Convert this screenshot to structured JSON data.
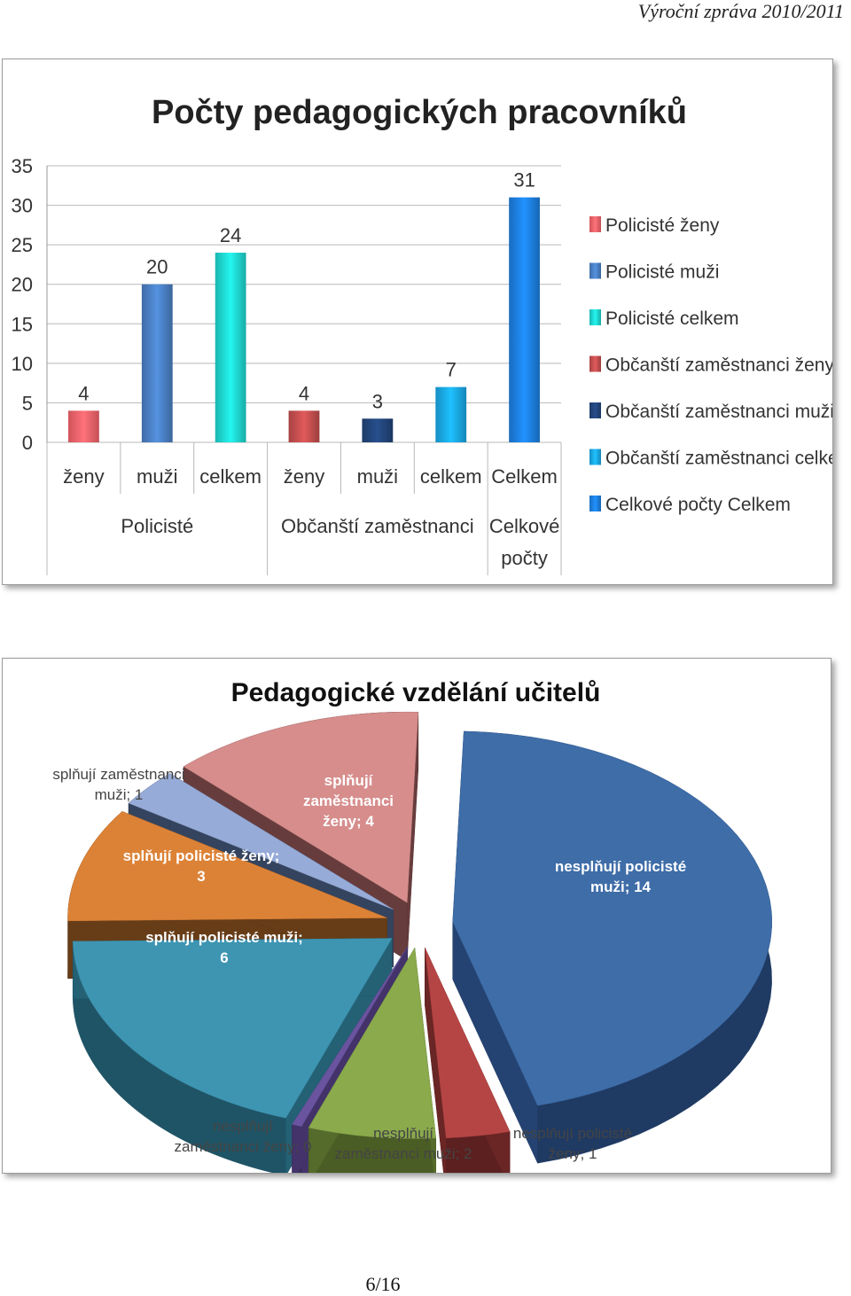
{
  "page": {
    "header": "Výroční zpráva 2010/2011",
    "footer": "6/16"
  },
  "chart_data": [
    {
      "type": "bar",
      "title": "Počty pedagogických pracovníků",
      "ylim": [
        0,
        35
      ],
      "yticks": [
        0,
        5,
        10,
        15,
        20,
        25,
        30,
        35
      ],
      "grid": true,
      "legend_position": "right",
      "groups": [
        {
          "name": "Policisté",
          "categories": [
            "ženy",
            "muži",
            "celkem"
          ]
        },
        {
          "name": "Občanští zaměstnanci",
          "categories": [
            "ženy",
            "muži",
            "celkem"
          ]
        },
        {
          "name": "Celkové počty",
          "categories": [
            "Celkem"
          ]
        }
      ],
      "series": [
        {
          "name": "Policisté ženy",
          "values": [
            4
          ],
          "color": "#f5636a"
        },
        {
          "name": "Policisté muži",
          "values": [
            20
          ],
          "color": "#4a7fc3"
        },
        {
          "name": "Policisté celkem",
          "values": [
            24
          ],
          "color": "#1fd6d0"
        },
        {
          "name": "Občanští zaměstnanci ženy",
          "values": [
            4
          ],
          "color": "#c44e4e"
        },
        {
          "name": "Občanští zaměstnanci muži",
          "values": [
            3
          ],
          "color": "#22457a"
        },
        {
          "name": "Občanští zaměstnanci celkem",
          "values": [
            7
          ],
          "color": "#1aa8e6"
        },
        {
          "name": "Celkové počty Celkem",
          "values": [
            31
          ],
          "color": "#1d7fe0"
        }
      ]
    },
    {
      "type": "pie",
      "title": "Pedagogické vzdělání učitelů",
      "slices": [
        {
          "label": "nesplňují policisté muži; 14",
          "value": 14,
          "color": "#3e6da8",
          "dark": "#1f3a63"
        },
        {
          "label": "nesplňují policisté ženy; 1",
          "value": 1,
          "color": "#b54544",
          "dark": "#5c2020"
        },
        {
          "label": "nesplňují zaměstnanci muži; 2",
          "value": 2,
          "color": "#8aaa4c",
          "dark": "#4a5d25"
        },
        {
          "label": "nesplňují zaměstnanci ženy; 0",
          "value": 0,
          "color": "#6a54a0",
          "dark": "#3a2c5c"
        },
        {
          "label": "splňují policisté muži; 6",
          "value": 6,
          "color": "#3d95b2",
          "dark": "#1f5466"
        },
        {
          "label": "splňují policisté ženy; 3",
          "value": 3,
          "color": "#dc8236",
          "dark": "#5a3515"
        },
        {
          "label": "splňují zaměstnanci muži; 1",
          "value": 1,
          "color": "#96abd8",
          "dark": "#2e3b52"
        },
        {
          "label": "splňují zaměstnanci ženy; 4",
          "value": 4,
          "color": "#d68d8c",
          "dark": "#5a3434"
        }
      ]
    }
  ]
}
